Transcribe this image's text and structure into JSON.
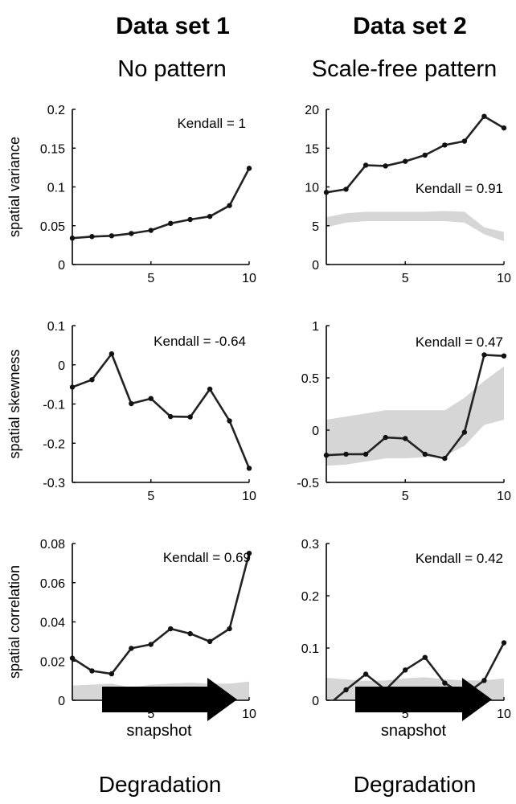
{
  "columns": [
    {
      "title": "Data set 1",
      "subtitle": "No pattern",
      "footer": "Degradation"
    },
    {
      "title": "Data set 2",
      "subtitle": "Scale-free pattern",
      "footer": "Degradation"
    }
  ],
  "colors": {
    "line": "#222222",
    "band": "#d6d6d6",
    "arrow": "#000000"
  },
  "chart_data": [
    {
      "type": "line",
      "panel": "row1-col1",
      "ylabel": "spatial variance",
      "xlabel": "",
      "annotation": "Kendall = 1",
      "xlim": [
        1,
        10
      ],
      "ylim": [
        0,
        0.2
      ],
      "xticks": [
        5,
        10
      ],
      "yticks": [
        0,
        0.05,
        0.1,
        0.15,
        0.2
      ],
      "yticklabels": [
        "0",
        "0.05",
        "0.1",
        "0.15",
        "0.2"
      ],
      "series": [
        {
          "x": [
            1,
            2,
            3,
            4,
            5,
            6,
            7,
            8,
            9,
            10
          ],
          "y": [
            0.034,
            0.036,
            0.037,
            0.04,
            0.044,
            0.053,
            0.058,
            0.062,
            0.076,
            0.124
          ]
        }
      ],
      "band": null
    },
    {
      "type": "line",
      "panel": "row1-col2",
      "ylabel": "",
      "xlabel": "",
      "annotation": "Kendall = 0.91",
      "xlim": [
        1,
        10
      ],
      "ylim": [
        0,
        20
      ],
      "xticks": [
        5,
        10
      ],
      "yticks": [
        0,
        5,
        10,
        15,
        20
      ],
      "yticklabels": [
        "0",
        "5",
        "10",
        "15",
        "20"
      ],
      "series": [
        {
          "x": [
            1,
            2,
            3,
            4,
            5,
            6,
            7,
            8,
            9,
            10
          ],
          "y": [
            9.3,
            9.7,
            12.8,
            12.7,
            13.3,
            14.1,
            15.4,
            15.9,
            19.1,
            17.6
          ]
        }
      ],
      "band": {
        "x": [
          1,
          2,
          3,
          4,
          5,
          6,
          7,
          8,
          9,
          10
        ],
        "lower": [
          4.8,
          5.4,
          5.6,
          5.6,
          5.6,
          5.6,
          5.6,
          5.4,
          3.9,
          3.0
        ],
        "upper": [
          6.1,
          6.6,
          6.8,
          6.8,
          6.8,
          6.8,
          6.9,
          6.8,
          4.8,
          4.2
        ]
      }
    },
    {
      "type": "line",
      "panel": "row2-col1",
      "ylabel": "spatial skewness",
      "xlabel": "",
      "annotation": "Kendall = -0.64",
      "xlim": [
        1,
        10
      ],
      "ylim": [
        -0.3,
        0.1
      ],
      "xticks": [
        5,
        10
      ],
      "yticks": [
        -0.3,
        -0.2,
        -0.1,
        0,
        0.1
      ],
      "yticklabels": [
        "-0.3",
        "-0.2",
        "-0.1",
        "0",
        "0.1"
      ],
      "series": [
        {
          "x": [
            1,
            2,
            3,
            4,
            5,
            6,
            7,
            8,
            9,
            10
          ],
          "y": [
            -0.057,
            -0.038,
            0.028,
            -0.099,
            -0.086,
            -0.132,
            -0.133,
            -0.062,
            -0.143,
            -0.264
          ]
        }
      ],
      "band": null
    },
    {
      "type": "line",
      "panel": "row2-col2",
      "ylabel": "",
      "xlabel": "",
      "annotation": "Kendall = 0.47",
      "xlim": [
        1,
        10
      ],
      "ylim": [
        -0.5,
        1
      ],
      "xticks": [
        5,
        10
      ],
      "yticks": [
        -0.5,
        0,
        0.5,
        1
      ],
      "yticklabels": [
        "-0.5",
        "0",
        "0.5",
        "1"
      ],
      "series": [
        {
          "x": [
            1,
            2,
            3,
            4,
            5,
            6,
            7,
            8,
            9,
            10
          ],
          "y": [
            -0.24,
            -0.23,
            -0.23,
            -0.07,
            -0.08,
            -0.23,
            -0.27,
            -0.02,
            0.72,
            0.71
          ]
        }
      ],
      "band": {
        "x": [
          1,
          2,
          3,
          4,
          5,
          6,
          7,
          8,
          9,
          10
        ],
        "lower": [
          -0.34,
          -0.33,
          -0.3,
          -0.27,
          -0.27,
          -0.26,
          -0.25,
          -0.15,
          0.05,
          0.1
        ],
        "upper": [
          0.1,
          0.13,
          0.16,
          0.19,
          0.19,
          0.19,
          0.19,
          0.31,
          0.47,
          0.61
        ]
      }
    },
    {
      "type": "line",
      "panel": "row3-col1",
      "ylabel": "spatial correlation",
      "xlabel": "snapshot",
      "annotation": "Kendall = 0.69",
      "xlim": [
        1,
        10
      ],
      "ylim": [
        0,
        0.08
      ],
      "xticks": [
        5,
        10
      ],
      "yticks": [
        0,
        0.02,
        0.04,
        0.06,
        0.08
      ],
      "yticklabels": [
        "0",
        "0.02",
        "0.04",
        "0.06",
        "0.08"
      ],
      "series": [
        {
          "x": [
            1,
            2,
            3,
            4,
            5,
            6,
            7,
            8,
            9,
            10
          ],
          "y": [
            0.0215,
            0.015,
            0.0135,
            0.0265,
            0.0285,
            0.0365,
            0.034,
            0.03,
            0.0365,
            0.075
          ]
        }
      ],
      "band": {
        "x": [
          1,
          2,
          3,
          4,
          5,
          6,
          7,
          8,
          9,
          10
        ],
        "lower": [
          0,
          0,
          0,
          0,
          0,
          0,
          0,
          0,
          0,
          0
        ],
        "upper": [
          0.0075,
          0.008,
          0.0085,
          0.0065,
          0.008,
          0.0085,
          0.009,
          0.0085,
          0.0085,
          0.0095
        ]
      }
    },
    {
      "type": "line",
      "panel": "row3-col2",
      "ylabel": "",
      "xlabel": "snapshot",
      "annotation": "Kendall = 0.42",
      "xlim": [
        1,
        10
      ],
      "ylim": [
        0,
        0.3
      ],
      "xticks": [
        5,
        10
      ],
      "yticks": [
        0,
        0.1,
        0.2,
        0.3
      ],
      "yticklabels": [
        "0",
        "0.1",
        "0.2",
        "0.3"
      ],
      "series": [
        {
          "x": [
            1,
            2,
            3,
            4,
            5,
            6,
            7,
            8,
            9,
            10
          ],
          "y": [
            -0.012,
            0.02,
            0.05,
            0.02,
            0.058,
            0.082,
            0.033,
            0.01,
            0.038,
            0.11
          ]
        }
      ],
      "band": {
        "x": [
          1,
          2,
          3,
          4,
          5,
          6,
          7,
          8,
          9,
          10
        ],
        "lower": [
          0,
          0,
          0,
          0,
          0,
          0,
          0,
          0,
          0,
          0
        ],
        "upper": [
          0.043,
          0.04,
          0.037,
          0.038,
          0.042,
          0.044,
          0.04,
          0.038,
          0.038,
          0.042
        ]
      }
    }
  ]
}
